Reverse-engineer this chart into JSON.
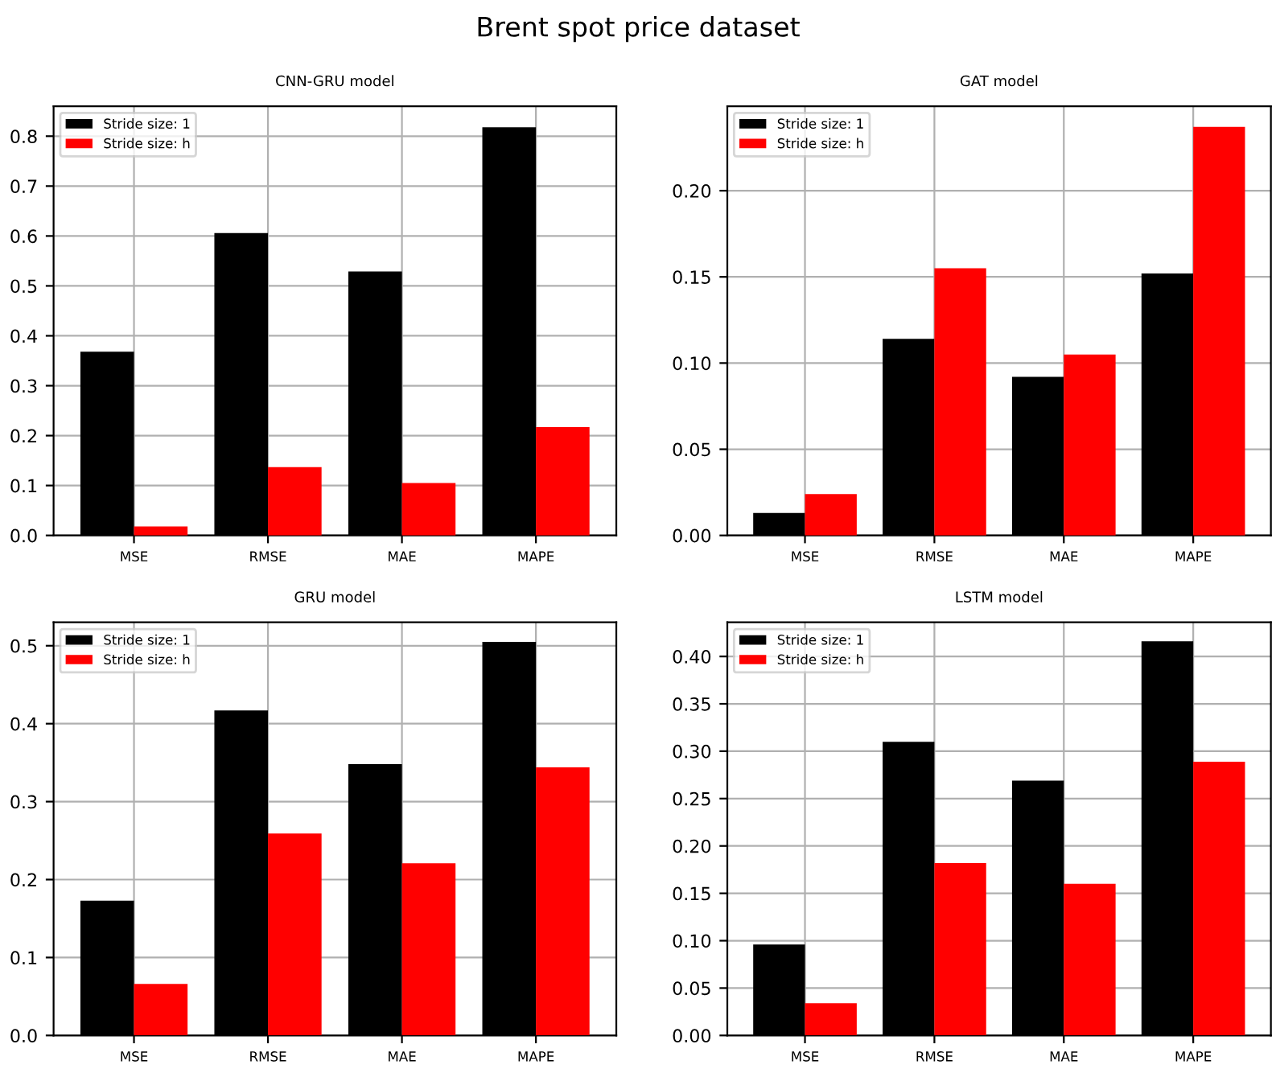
{
  "chart_data": [
    {
      "type": "bar",
      "title": "CNN-GRU model",
      "categories": [
        "MSE",
        "RMSE",
        "MAE",
        "MAPE"
      ],
      "series": [
        {
          "name": "Stride size: 1",
          "color": "#000000",
          "values": [
            0.368,
            0.606,
            0.529,
            0.818
          ]
        },
        {
          "name": "Stride size: h",
          "color": "#ff0000",
          "values": [
            0.018,
            0.137,
            0.105,
            0.217
          ]
        }
      ],
      "ylim": [
        0,
        0.86
      ],
      "annotations": [
        "Brent spot price dataset"
      ],
      "yticks": [
        {
          "value": 0,
          "label": "0.0"
        },
        0.1,
        0.2,
        0.3,
        0.4,
        0.5,
        0.6,
        0.7,
        0.8
      ],
      "grid": true,
      "legend": "top left"
    },
    {
      "type": "bar",
      "title": "GAT model",
      "categories": [
        "MSE",
        "RMSE",
        "MAE",
        "MAPE"
      ],
      "series": [
        {
          "name": "Stride size: 1",
          "color": "#000000",
          "values": [
            0.013,
            0.114,
            0.092,
            0.152
          ]
        },
        {
          "name": "Stride size: h",
          "color": "#ff0000",
          "values": [
            0.024,
            0.155,
            0.105,
            0.237
          ]
        }
      ],
      "ylim": [
        0,
        0.249
      ],
      "yticks": [
        {
          "value": 0,
          "label": "0.00"
        },
        {
          "value": 0.05,
          "label": "0.05"
        },
        {
          "value": 0.1,
          "label": "0.10"
        },
        {
          "value": 0.15,
          "label": "0.15"
        },
        {
          "value": 0.2,
          "label": "0.20"
        }
      ],
      "grid": true,
      "legend": "top left"
    },
    {
      "type": "bar",
      "title": "GRU model",
      "categories": [
        "MSE",
        "RMSE",
        "MAE",
        "MAPE"
      ],
      "series": [
        {
          "name": "Stride size: 1",
          "color": "#000000",
          "values": [
            0.173,
            0.417,
            0.348,
            0.505
          ]
        },
        {
          "name": "Stride size: h",
          "color": "#ff0000",
          "values": [
            0.066,
            0.259,
            0.221,
            0.344
          ]
        }
      ],
      "ylim": [
        0,
        0.53
      ],
      "yticks": [
        {
          "value": 0,
          "label": "0.0"
        },
        0.1,
        0.2,
        0.3,
        0.4,
        0.5
      ],
      "grid": true,
      "legend": "top left"
    },
    {
      "type": "bar",
      "title": "LSTM model",
      "categories": [
        "MSE",
        "RMSE",
        "MAE",
        "MAPE"
      ],
      "series": [
        {
          "name": "Stride size: 1",
          "color": "#000000",
          "values": [
            0.096,
            0.31,
            0.269,
            0.416
          ]
        },
        {
          "name": "Stride size: h",
          "color": "#ff0000",
          "values": [
            0.034,
            0.182,
            0.16,
            0.289
          ]
        }
      ],
      "ylim": [
        0,
        0.436
      ],
      "yticks": [
        {
          "value": 0,
          "label": "0.00"
        },
        {
          "value": 0.05,
          "label": "0.05"
        },
        {
          "value": 0.1,
          "label": "0.10"
        },
        {
          "value": 0.15,
          "label": "0.15"
        },
        {
          "value": 0.2,
          "label": "0.20"
        },
        {
          "value": 0.25,
          "label": "0.25"
        },
        {
          "value": 0.3,
          "label": "0.30"
        },
        {
          "value": 0.35,
          "label": "0.35"
        },
        {
          "value": 0.4,
          "label": "0.40"
        }
      ],
      "grid": true,
      "legend": "top left"
    }
  ]
}
